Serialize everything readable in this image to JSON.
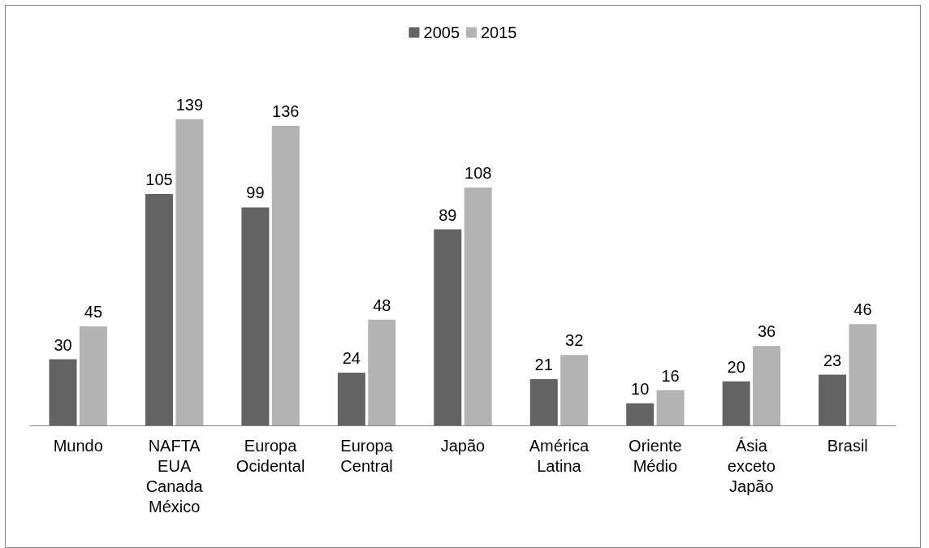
{
  "chart_data": {
    "type": "bar",
    "categories": [
      "Mundo",
      "NAFTA EUA Canada México",
      "Europa Ocidental",
      "Europa Central",
      "Japão",
      "América Latina",
      "Oriente Médio",
      "Ásia exceto Japão",
      "Brasil"
    ],
    "series": [
      {
        "name": "2005",
        "color": "#636363",
        "values": [
          30,
          105,
          99,
          24,
          89,
          21,
          10,
          20,
          23
        ]
      },
      {
        "name": "2015",
        "color": "#b3b3b3",
        "values": [
          45,
          139,
          136,
          48,
          108,
          32,
          16,
          36,
          46
        ]
      }
    ],
    "data_labels": true,
    "legend": "top"
  }
}
